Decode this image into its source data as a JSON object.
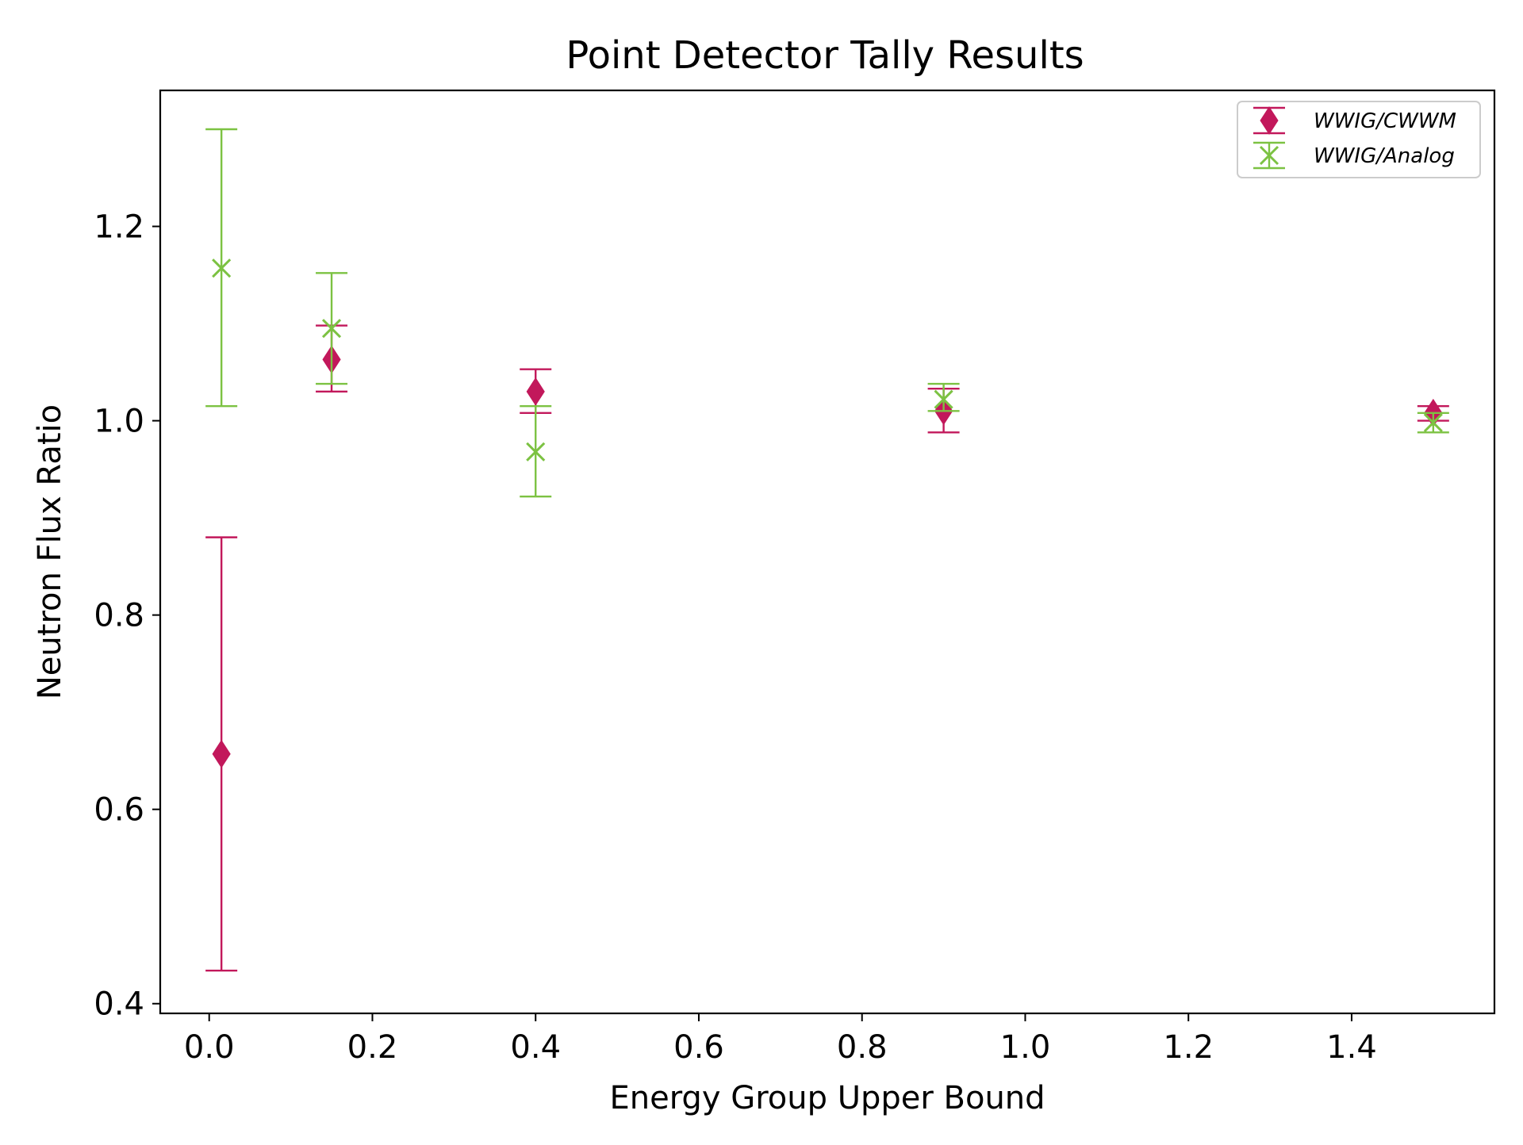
{
  "chart_data": {
    "type": "scatter",
    "title": "Point Detector Tally Results",
    "xlabel": "Energy Group Upper Bound",
    "ylabel": "Neutron Flux Ratio",
    "xlim": [
      -0.06,
      1.575
    ],
    "ylim": [
      0.39,
      1.34
    ],
    "xticks": [
      0.0,
      0.2,
      0.4,
      0.6,
      0.8,
      1.0,
      1.2,
      1.4
    ],
    "xtick_labels": [
      "0.0",
      "0.2",
      "0.4",
      "0.6",
      "0.8",
      "1.0",
      "1.2",
      "1.4"
    ],
    "yticks": [
      0.4,
      0.6,
      0.8,
      1.0,
      1.2
    ],
    "ytick_labels": [
      "0.4",
      "0.6",
      "0.8",
      "1.0",
      "1.2"
    ],
    "grid": false,
    "legend_position": "top-right",
    "series": [
      {
        "name": "WWIG/CWWM",
        "color": "#c2185b",
        "marker": "diamond",
        "x": [
          0.015,
          0.15,
          0.4,
          0.9,
          1.5
        ],
        "y": [
          0.657,
          1.063,
          1.03,
          1.01,
          1.008
        ],
        "yerr_low": [
          0.434,
          1.03,
          1.008,
          0.988,
          1.0
        ],
        "yerr_high": [
          0.88,
          1.098,
          1.053,
          1.033,
          1.015
        ]
      },
      {
        "name": "WWIG/Analog",
        "color": "#7cc242",
        "marker": "x",
        "x": [
          0.015,
          0.15,
          0.4,
          0.9,
          1.5
        ],
        "y": [
          1.157,
          1.095,
          0.968,
          1.022,
          0.998
        ],
        "yerr_low": [
          1.015,
          1.038,
          0.922,
          1.01,
          0.988
        ],
        "yerr_high": [
          1.3,
          1.152,
          1.015,
          1.038,
          1.008
        ]
      }
    ]
  }
}
